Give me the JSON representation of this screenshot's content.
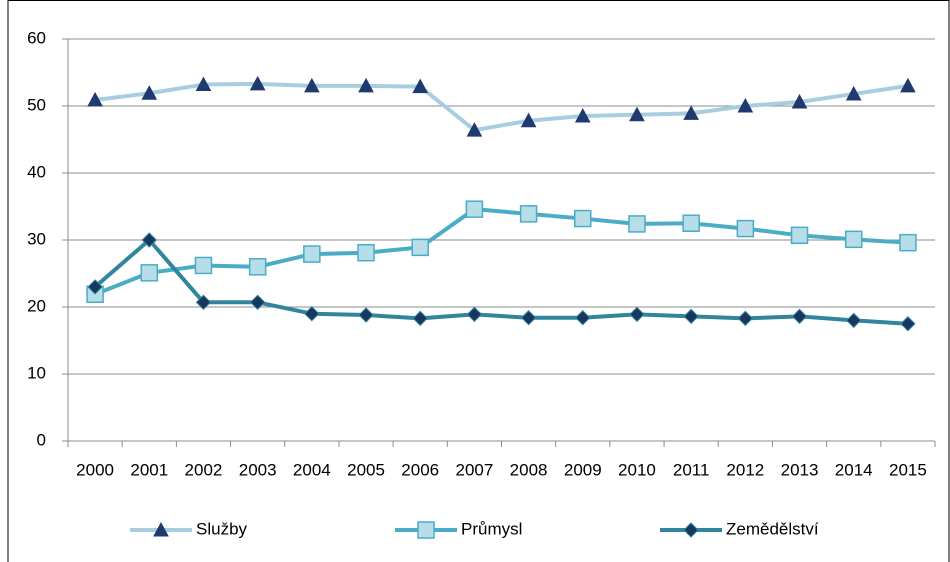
{
  "chart_data": {
    "type": "line",
    "categories": [
      "2000",
      "2001",
      "2002",
      "2003",
      "2004",
      "2005",
      "2006",
      "2007",
      "2008",
      "2009",
      "2010",
      "2011",
      "2012",
      "2013",
      "2014",
      "2015"
    ],
    "series": [
      {
        "name": "Služby",
        "color": "#a9cde0",
        "marker": "triangle",
        "marker_color": "#1f3a6e",
        "values": [
          50.9,
          51.9,
          53.2,
          53.3,
          53,
          53,
          52.9,
          46.4,
          47.8,
          48.5,
          48.7,
          48.9,
          50,
          50.6,
          51.8,
          53
        ]
      },
      {
        "name": "Průmysl",
        "color": "#4bacc6",
        "marker": "square",
        "marker_color": "#b7dde8",
        "values": [
          21.9,
          25.1,
          26.2,
          26,
          27.9,
          28.1,
          28.9,
          34.6,
          33.9,
          33.2,
          32.4,
          32.5,
          31.7,
          30.7,
          30.1,
          29.6
        ]
      },
      {
        "name": "Zemědělství",
        "color": "#31859c",
        "marker": "diamond",
        "marker_color": "#17375e",
        "values": [
          23,
          30,
          20.7,
          20.7,
          19,
          18.8,
          18.3,
          18.9,
          18.4,
          18.4,
          18.9,
          18.6,
          18.3,
          18.6,
          18,
          17.5
        ]
      }
    ],
    "ylim": [
      0,
      60
    ],
    "yticks": [
      0,
      10,
      20,
      30,
      40,
      50,
      60
    ],
    "grid": true,
    "legend": "bottom"
  }
}
